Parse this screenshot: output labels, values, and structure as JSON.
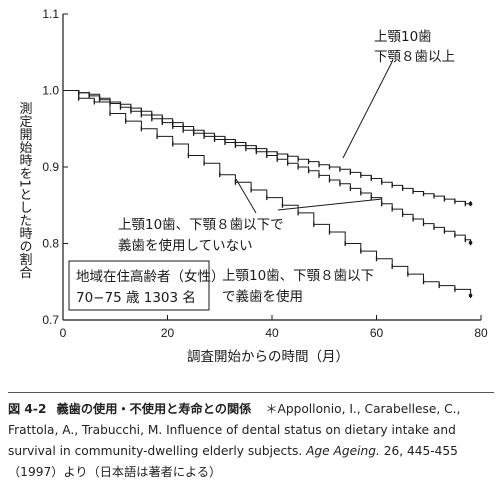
{
  "chart_data": {
    "type": "line",
    "subtype": "step (Kaplan-Meier survival curves)",
    "ylabel": "測定開始時を1とした時の割合",
    "xlabel": "調査開始からの時間（月）",
    "xlim": [
      0,
      80
    ],
    "ylim": [
      0.7,
      1.1
    ],
    "xticks": [
      "0",
      "20",
      "40",
      "60",
      "80"
    ],
    "yticks": [
      "0.7",
      "0.8",
      "0.9",
      "1.0",
      "1.1"
    ],
    "grid": false,
    "legend": "none (curves labeled by annotations)",
    "annotations": [
      [
        "上顎10歯",
        "下顎８歯以上"
      ],
      [
        "上顎10歯、下顎８歯以下で",
        "義歯を使用していない"
      ],
      [
        "上顎10歯、下顎８歯以下",
        "で義歯を使用"
      ]
    ],
    "info_box": [
      "地域在住高齢者（女性）",
      "70−75 歳 1303 名"
    ],
    "series": [
      {
        "x": [
          0,
          3,
          5,
          7,
          9,
          11,
          13,
          15,
          17,
          19,
          21,
          23,
          25,
          27,
          29,
          31,
          33,
          35,
          37,
          39,
          41,
          43,
          45,
          47,
          49,
          51,
          53,
          55,
          57,
          59,
          61,
          63,
          65,
          67,
          69,
          71,
          73,
          75,
          77,
          78
        ],
        "y": [
          1.0,
          0.997,
          0.995,
          0.99,
          0.985,
          0.982,
          0.977,
          0.973,
          0.968,
          0.963,
          0.958,
          0.953,
          0.948,
          0.944,
          0.94,
          0.936,
          0.932,
          0.928,
          0.924,
          0.92,
          0.917,
          0.914,
          0.91,
          0.907,
          0.903,
          0.9,
          0.897,
          0.893,
          0.889,
          0.885,
          0.88,
          0.876,
          0.872,
          0.868,
          0.865,
          0.862,
          0.858,
          0.855,
          0.852,
          0.852
        ]
      },
      {
        "x": [
          0,
          3,
          5,
          7,
          9,
          11,
          13,
          15,
          17,
          19,
          21,
          23,
          25,
          27,
          29,
          31,
          33,
          35,
          37,
          39,
          41,
          43,
          45,
          47,
          49,
          51,
          53,
          55,
          57,
          59,
          61,
          63,
          65,
          67,
          69,
          71,
          73,
          75,
          77,
          78
        ],
        "y": [
          1.0,
          0.997,
          0.993,
          0.988,
          0.983,
          0.978,
          0.973,
          0.968,
          0.963,
          0.958,
          0.953,
          0.948,
          0.944,
          0.94,
          0.936,
          0.932,
          0.928,
          0.924,
          0.92,
          0.915,
          0.91,
          0.905,
          0.9,
          0.895,
          0.889,
          0.883,
          0.878,
          0.872,
          0.866,
          0.86,
          0.852,
          0.845,
          0.838,
          0.832,
          0.826,
          0.821,
          0.816,
          0.811,
          0.805,
          0.801
        ]
      },
      {
        "x": [
          0,
          3,
          6,
          9,
          12,
          15,
          18,
          21,
          24,
          27,
          30,
          33,
          36,
          39,
          42,
          45,
          48,
          51,
          54,
          57,
          60,
          63,
          66,
          69,
          72,
          75,
          78
        ],
        "y": [
          1.0,
          0.99,
          0.985,
          0.97,
          0.96,
          0.95,
          0.94,
          0.93,
          0.915,
          0.905,
          0.89,
          0.88,
          0.87,
          0.86,
          0.85,
          0.84,
          0.825,
          0.815,
          0.8,
          0.79,
          0.78,
          0.77,
          0.76,
          0.75,
          0.745,
          0.74,
          0.732
        ]
      }
    ]
  },
  "caption": {
    "figure_number": "図 4-2",
    "title": "義歯の使用・不使用と寿命との関係",
    "citation_text": "＊Appollonio, I., Carabellese, C., Frattola, A., Trabucchi, M. Influence of dental status on dietary intake and survival in community-dwelling elderly subjects.",
    "journal": "Age Ageing.",
    "citation_tail": "26, 445-455（1997）より（日本語は著者による）"
  }
}
